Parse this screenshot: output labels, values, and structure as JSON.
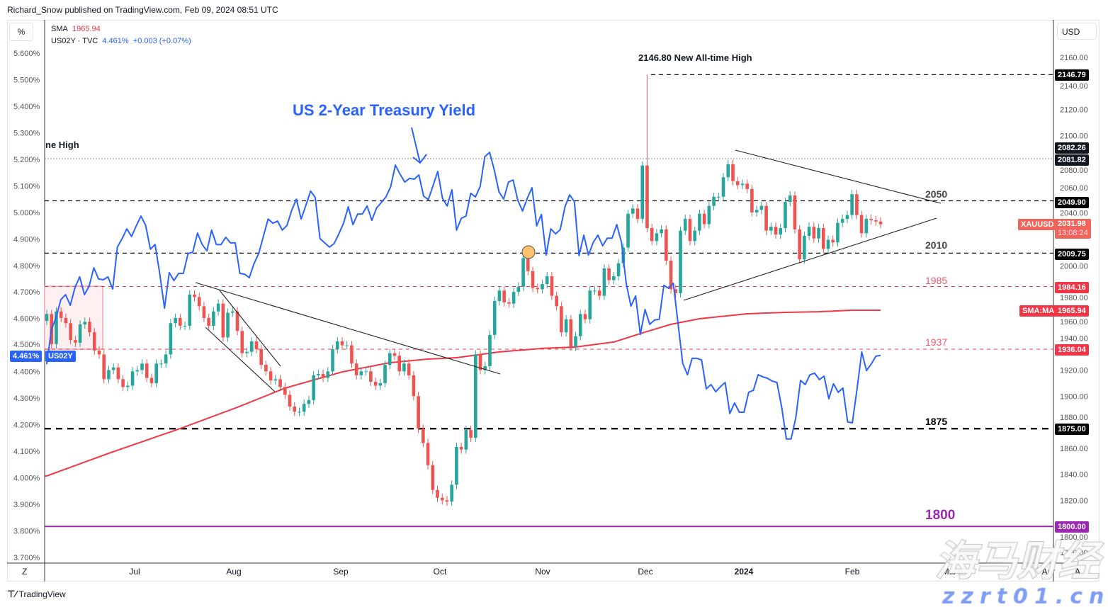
{
  "header": {
    "published": "Richard_Snow published on TradingView.com, Feb 09, 2024 08:51 UTC"
  },
  "controls": {
    "percent_button": "%",
    "currency_button": "USD",
    "zoom_button": "Z"
  },
  "legend": {
    "sma_label": "SMA",
    "sma_value": "1965.94",
    "yield_symbol": "US02Y · TVC",
    "yield_value": "4.461%",
    "yield_change": "+0.003 (+0.07%)"
  },
  "colors": {
    "up": "#26a69a",
    "down": "#ef5350",
    "yield": "#2962ff",
    "sma": "#f23645",
    "purple": "#9c27b0",
    "ath": "#f23645"
  },
  "annotations": {
    "title": "US 2-Year Treasury Yield",
    "ath_text": "2146.80 New All-time High",
    "prev_high_text": "ne High",
    "level_2050": "2050",
    "level_2010": "2010",
    "level_1985": "1985",
    "level_1937": "1937",
    "level_1875": "1875",
    "level_1800": "1800"
  },
  "badges": {
    "ath": "2146.79",
    "prev_high_a": "2082.26",
    "prev_high_b": "2081.82",
    "r2050": "2049.90",
    "symbol": "XAUUSD",
    "last_price": "2031.98",
    "countdown": "13:08:24",
    "r2010": "2009.75",
    "r1985": "1984.16",
    "sma_tag": "SMA:MA",
    "sma_price": "1965.94",
    "r1937": "1936.04",
    "r1875": "1875.00",
    "r1800": "1800.00",
    "yield_value": "4.461%",
    "yield_symbol": "US02Y"
  },
  "footer": {
    "logo": "TradingView"
  },
  "watermark": {
    "cn": "海马财经",
    "site": "zzrt01.cn"
  },
  "chart_data": {
    "type": "candlestick+line",
    "symbol": "XAUUSD",
    "right_axis": {
      "unit": "USD",
      "range": [
        1780,
        2160
      ],
      "ticks": [
        "2160.00",
        "2140.00",
        "2120.00",
        "2100.00",
        "2080.00",
        "2060.00",
        "2040.00",
        "2020.00",
        "2000.00",
        "1980.00",
        "1960.00",
        "1940.00",
        "1920.00",
        "1900.00",
        "1880.00",
        "1860.00",
        "1840.00",
        "1820.00",
        "1800.00",
        "1780.00"
      ]
    },
    "left_axis": {
      "unit": "%",
      "range": [
        3.7,
        5.6
      ],
      "ticks": [
        "5.600%",
        "5.500%",
        "5.400%",
        "5.300%",
        "5.200%",
        "5.100%",
        "5.000%",
        "4.900%",
        "4.800%",
        "4.700%",
        "4.600%",
        "4.500%",
        "4.400%",
        "4.300%",
        "4.200%",
        "4.100%",
        "4.000%",
        "3.900%",
        "3.800%",
        "3.700%"
      ]
    },
    "x_axis": {
      "ticks": [
        "Jul",
        "Aug",
        "Sep",
        "Oct",
        "Nov",
        "Dec",
        "2024",
        "Feb",
        "Mar",
        "Apr",
        "A"
      ]
    },
    "first_open": 1957.7,
    "gold_close": [
      1963,
      1940,
      1965,
      1960,
      1956,
      1943,
      1941,
      1955,
      1957,
      1949,
      1935,
      1932,
      1913,
      1920,
      1922,
      1913,
      1907,
      1908,
      1919,
      1920,
      1925,
      1914,
      1910,
      1925,
      1925,
      1932,
      1956,
      1960,
      1954,
      1954,
      1978,
      1976,
      1969,
      1960,
      1954,
      1965,
      1971,
      1945,
      1964,
      1965,
      1950,
      1933,
      1934,
      1942,
      1936,
      1924,
      1919,
      1912,
      1913,
      1907,
      1901,
      1892,
      1888,
      1888,
      1894,
      1897,
      1916,
      1917,
      1914,
      1919,
      1936,
      1942,
      1939,
      1939,
      1925,
      1916,
      1919,
      1919,
      1911,
      1908,
      1910,
      1924,
      1933,
      1931,
      1919,
      1925,
      1916,
      1900,
      1875,
      1864,
      1847,
      1828,
      1822,
      1820,
      1819,
      1832,
      1861,
      1859,
      1874,
      1868,
      1932,
      1920,
      1923,
      1947,
      1973,
      1981,
      1972,
      1971,
      1980,
      1984,
      2006,
      1996,
      1983,
      1982,
      1986,
      1992,
      1977,
      1969,
      1949,
      1959,
      1938,
      1946,
      1963,
      1959,
      1981,
      1981,
      1977,
      1998,
      1989,
      1992,
      2002,
      2014,
      2040,
      2044,
      2036,
      2077,
      2029,
      2019,
      2025,
      2028,
      2004,
      1982,
      1979,
      2027,
      2036,
      2019,
      2027,
      2040,
      2032,
      2046,
      2053,
      2053,
      2068,
      2078,
      2065,
      2062,
      2063,
      2059,
      2041,
      2043,
      2046,
      2027,
      2030,
      2024,
      2029,
      2049,
      2054,
      2028,
      2005,
      2023,
      2030,
      2021,
      2029,
      2013,
      2020,
      2018,
      2033,
      2036,
      2039,
      2055,
      2039,
      2025,
      2036,
      2035,
      2034,
      2031.98
    ],
    "all_time_high": {
      "candle": 126,
      "price": 2146.79
    },
    "sma200": [
      [
        0,
        1838.7
      ],
      [
        13,
        1856.1
      ],
      [
        28,
        1875.1
      ],
      [
        40,
        1891.4
      ],
      [
        50,
        1906.1
      ],
      [
        62,
        1918.6
      ],
      [
        72,
        1925.7
      ],
      [
        80,
        1928.4
      ],
      [
        86,
        1929.5
      ],
      [
        95,
        1933.9
      ],
      [
        104,
        1936.6
      ],
      [
        111,
        1937.7
      ],
      [
        119,
        1941.5
      ],
      [
        125,
        1948.5
      ],
      [
        131,
        1955.1
      ],
      [
        137,
        1959.4
      ],
      [
        147,
        1963.2
      ],
      [
        155,
        1964.3
      ],
      [
        162,
        1964.8
      ],
      [
        169,
        1965.9
      ],
      [
        175,
        1965.9
      ]
    ],
    "us02y": [
      4.428,
      4.559,
      4.605,
      4.671,
      4.69,
      4.65,
      4.717,
      4.757,
      4.69,
      4.722,
      4.791,
      4.749,
      4.746,
      4.757,
      4.711,
      4.869,
      4.901,
      4.938,
      4.909,
      4.949,
      4.986,
      4.951,
      4.861,
      4.879,
      4.767,
      4.639,
      4.773,
      4.743,
      4.77,
      4.77,
      4.845,
      4.85,
      4.922,
      4.879,
      4.855,
      4.933,
      4.879,
      4.879,
      4.906,
      4.885,
      4.885,
      4.77,
      4.767,
      4.754,
      4.807,
      4.845,
      4.911,
      4.975,
      4.959,
      4.967,
      4.933,
      4.951,
      5.008,
      5.05,
      4.975,
      5.026,
      5.08,
      5.056,
      4.901,
      4.885,
      4.869,
      4.882,
      4.919,
      4.959,
      5.021,
      4.954,
      4.994,
      4.994,
      5.024,
      4.97,
      5.016,
      5.037,
      5.058,
      5.096,
      5.178,
      5.144,
      5.114,
      5.128,
      5.125,
      5.141,
      5.061,
      5.048,
      5.101,
      5.154,
      5.053,
      5.024,
      5.085,
      4.933,
      4.978,
      4.986,
      5.072,
      5.058,
      5.098,
      5.21,
      5.226,
      5.16,
      5.077,
      5.05,
      5.114,
      5.122,
      5.045,
      5.005,
      5.053,
      5.093,
      4.949,
      4.992,
      4.839,
      4.938,
      4.919,
      4.935,
      5.021,
      5.066,
      5.04,
      4.837,
      4.914,
      4.839,
      4.887,
      4.914,
      4.874,
      4.903,
      4.903,
      4.954,
      4.887,
      4.733,
      4.647,
      4.685,
      4.54,
      4.634,
      4.578,
      4.594,
      4.597,
      4.725,
      4.714,
      4.733,
      4.581,
      4.431,
      4.388,
      4.45,
      4.45,
      4.444,
      4.335,
      4.351,
      4.324,
      4.343,
      4.359,
      4.242,
      4.282,
      4.247,
      4.247,
      4.322,
      4.33,
      4.388,
      4.38,
      4.375,
      4.364,
      4.359,
      4.266,
      4.146,
      4.146,
      4.226,
      4.367,
      4.351,
      4.388,
      4.394,
      4.37,
      4.383,
      4.298,
      4.354,
      4.322,
      4.338,
      4.21,
      4.207,
      4.335,
      4.474,
      4.404,
      4.428,
      4.458,
      4.461
    ],
    "levels": [
      {
        "price": 2146.79,
        "style": "dashed-black"
      },
      {
        "price": 2082.26,
        "style": "dotted-gray"
      },
      {
        "price": 2049.9,
        "style": "dashed-black"
      },
      {
        "price": 2009.75,
        "style": "dashed-black"
      },
      {
        "price": 1984.16,
        "style": "dashed-red"
      },
      {
        "price": 1936.04,
        "style": "dashed-red"
      },
      {
        "price": 1875.0,
        "style": "bold-dashed-black"
      },
      {
        "price": 1800.0,
        "style": "solid-purple"
      }
    ],
    "pattern": "symmetrical triangle"
  }
}
